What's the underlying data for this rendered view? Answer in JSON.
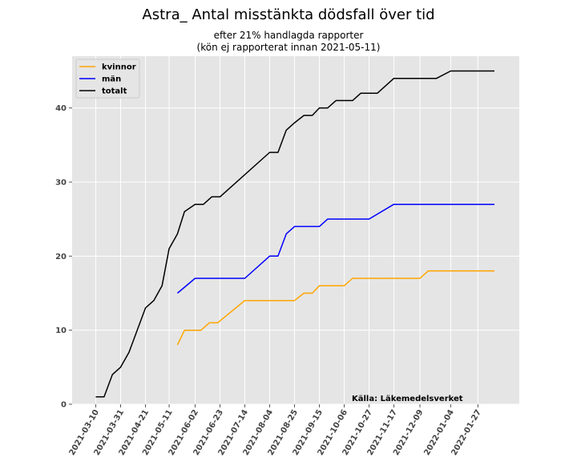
{
  "chart_data": {
    "type": "line",
    "title": "Astra_ Antal misstänkta dödsfall över tid",
    "subtitle_lines": [
      "efter 21% handlagda rapporter",
      "(kön ej rapporterat innan 2021-05-11)"
    ],
    "xlabel": "",
    "ylabel": "",
    "source_note": "Källa: Läkemedelsverket",
    "ylim": [
      0,
      47
    ],
    "y_ticks": [
      0,
      10,
      20,
      30,
      40
    ],
    "x_ticks": [
      "2021-03-10",
      "2021-03-31",
      "2021-04-21",
      "2021-05-11",
      "2021-06-02",
      "2021-06-23",
      "2021-07-14",
      "2021-08-04",
      "2021-08-25",
      "2021-09-15",
      "2021-10-06",
      "2021-10-27",
      "2021-11-17",
      "2021-12-09",
      "2022-01-04",
      "2022-01-27"
    ],
    "grid": true,
    "legend_position": "top-left",
    "series": [
      {
        "name": "kvinnor",
        "color": "#ffa500",
        "points": [
          [
            "2021-05-18",
            8
          ],
          [
            "2021-05-24",
            10
          ],
          [
            "2021-06-07",
            10
          ],
          [
            "2021-06-14",
            11
          ],
          [
            "2021-06-21",
            11
          ],
          [
            "2021-07-14",
            14
          ],
          [
            "2021-08-25",
            14
          ],
          [
            "2021-09-02",
            15
          ],
          [
            "2021-09-09",
            15
          ],
          [
            "2021-09-15",
            16
          ],
          [
            "2021-10-06",
            16
          ],
          [
            "2021-10-13",
            17
          ],
          [
            "2021-12-09",
            17
          ],
          [
            "2021-12-16",
            18
          ],
          [
            "2022-02-10",
            18
          ]
        ]
      },
      {
        "name": "män",
        "color": "#0000ff",
        "points": [
          [
            "2021-05-18",
            15
          ],
          [
            "2021-06-02",
            17
          ],
          [
            "2021-07-14",
            17
          ],
          [
            "2021-08-04",
            20
          ],
          [
            "2021-08-11",
            20
          ],
          [
            "2021-08-18",
            23
          ],
          [
            "2021-08-25",
            24
          ],
          [
            "2021-09-15",
            24
          ],
          [
            "2021-09-22",
            25
          ],
          [
            "2021-10-27",
            25
          ],
          [
            "2021-11-17",
            27
          ],
          [
            "2022-02-10",
            27
          ]
        ]
      },
      {
        "name": "totalt",
        "color": "#000000",
        "points": [
          [
            "2021-03-10",
            1
          ],
          [
            "2021-03-17",
            1
          ],
          [
            "2021-03-24",
            4
          ],
          [
            "2021-03-31",
            5
          ],
          [
            "2021-04-07",
            7
          ],
          [
            "2021-04-14",
            10
          ],
          [
            "2021-04-21",
            13
          ],
          [
            "2021-04-28",
            14
          ],
          [
            "2021-05-05",
            16
          ],
          [
            "2021-05-11",
            21
          ],
          [
            "2021-05-18",
            23
          ],
          [
            "2021-05-24",
            26
          ],
          [
            "2021-06-02",
            27
          ],
          [
            "2021-06-09",
            27
          ],
          [
            "2021-06-16",
            28
          ],
          [
            "2021-06-23",
            28
          ],
          [
            "2021-08-04",
            34
          ],
          [
            "2021-08-11",
            34
          ],
          [
            "2021-08-18",
            37
          ],
          [
            "2021-08-25",
            38
          ],
          [
            "2021-09-02",
            39
          ],
          [
            "2021-09-09",
            39
          ],
          [
            "2021-09-15",
            40
          ],
          [
            "2021-09-22",
            40
          ],
          [
            "2021-09-29",
            41
          ],
          [
            "2021-10-13",
            41
          ],
          [
            "2021-10-20",
            42
          ],
          [
            "2021-11-03",
            42
          ],
          [
            "2021-11-17",
            44
          ],
          [
            "2021-12-23",
            44
          ],
          [
            "2022-01-04",
            45
          ],
          [
            "2022-02-10",
            45
          ]
        ]
      }
    ]
  }
}
